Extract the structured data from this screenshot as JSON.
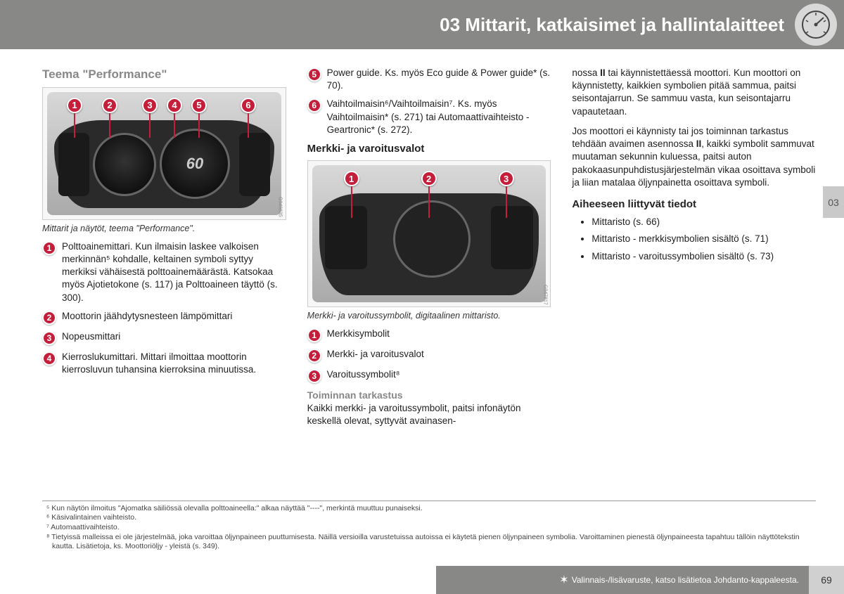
{
  "header": {
    "title": "03 Mittarit, katkaisimet ja hallintalaitteet"
  },
  "sideTab": "03",
  "col1": {
    "heading": "Teema \"Performance\"",
    "fig": {
      "speed": "60",
      "code": "G046635",
      "markers": [
        1,
        2,
        3,
        4,
        5,
        6
      ]
    },
    "caption": "Mittarit ja näytöt, teema \"Performance\".",
    "items": [
      {
        "n": 1,
        "text": "Polttoainemittari. Kun ilmaisin laskee valkoisen merkinnän⁵ kohdalle, keltainen symboli syttyy merkiksi vähäisestä polttoainemäärästä. Katsokaa myös Ajotietokone (s. 117) ja Polttoaineen täyttö (s. 300)."
      },
      {
        "n": 2,
        "text": "Moottorin jäähdytysnesteen lämpömittari"
      },
      {
        "n": 3,
        "text": "Nopeusmittari"
      },
      {
        "n": 4,
        "text": "Kierroslukumittari. Mittari ilmoittaa moottorin kierrosluvun tuhansina kierroksina minuutissa."
      }
    ]
  },
  "col2": {
    "topItems": [
      {
        "n": 5,
        "text": "Power guide. Ks. myös Eco guide & Power guide* (s. 70)."
      },
      {
        "n": 6,
        "text": "Vaihtoilmaisin⁶/Vaihtoilmaisin⁷. Ks. myös Vaihtoilmaisin* (s. 271) tai Automaattivaihteisto - Geartronic* (s. 272)."
      }
    ],
    "heading2": "Merkki- ja varoitusvalot",
    "fig": {
      "code": "G047817",
      "markers": [
        1,
        2,
        3
      ]
    },
    "caption2": "Merkki- ja varoitussymbolit, digitaalinen mittaristo.",
    "items2": [
      {
        "n": 1,
        "text": "Merkkisymbolit"
      },
      {
        "n": 2,
        "text": "Merkki- ja varoitusvalot"
      },
      {
        "n": 3,
        "text": "Varoitussymbolit⁸"
      }
    ],
    "gray": "Toiminnan tarkastus",
    "bodyText": "Kaikki merkki- ja varoitussymbolit, paitsi infonäytön keskellä olevat, syttyvät avainasen-"
  },
  "col3": {
    "para1": "nossa <b>II</b> tai käynnistettäessä moottori. Kun moottori on käynnistetty, kaikkien symbolien pitää sammua, paitsi seisontajarrun. Se sammuu vasta, kun seisontajarru vapautetaan.",
    "para2": "Jos moottori ei käynnisty tai jos toiminnan tarkastus tehdään avaimen asennossa <b>II</b>, kaikki symbolit sammuvat muutaman sekunnin kuluessa, paitsi auton pakokaasunpuhdistusjärjestelmän vikaa osoittava symboli ja liian matalaa öljynpainetta osoittava symboli.",
    "relatedHead": "Aiheeseen liittyvät tiedot",
    "bullets": [
      "Mittaristo (s. 66)",
      "Mittaristo - merkkisymbolien sisältö (s. 71)",
      "Mittaristo - varoitussymbolien sisältö (s. 73)"
    ]
  },
  "footnotes": [
    "⁵ Kun näytön ilmoitus \"Ajomatka säiliössä olevalla polttoaineella:\" alkaa näyttää \"----\", merkintä muuttuu punaiseksi.",
    "⁶ Käsivalintainen vaihteisto.",
    "⁷ Automaattivaihteisto.",
    "⁸ Tietyissä malleissa ei ole järjestelmää, joka varoittaa öljynpaineen puuttumisesta. Näillä versioilla varustetuissa autoissa ei käytetä pienen öljynpaineen symbolia. Varoittaminen pienestä öljynpaineesta tapahtuu tällöin näyttötekstin kautta. Lisätietoja, ks. Moottoriöljy - yleistä (s. 349)."
  ],
  "footer": {
    "note": "Valinnais-/lisävaruste, katso lisätietoa Johdanto-kappaleesta.",
    "page": "69"
  }
}
